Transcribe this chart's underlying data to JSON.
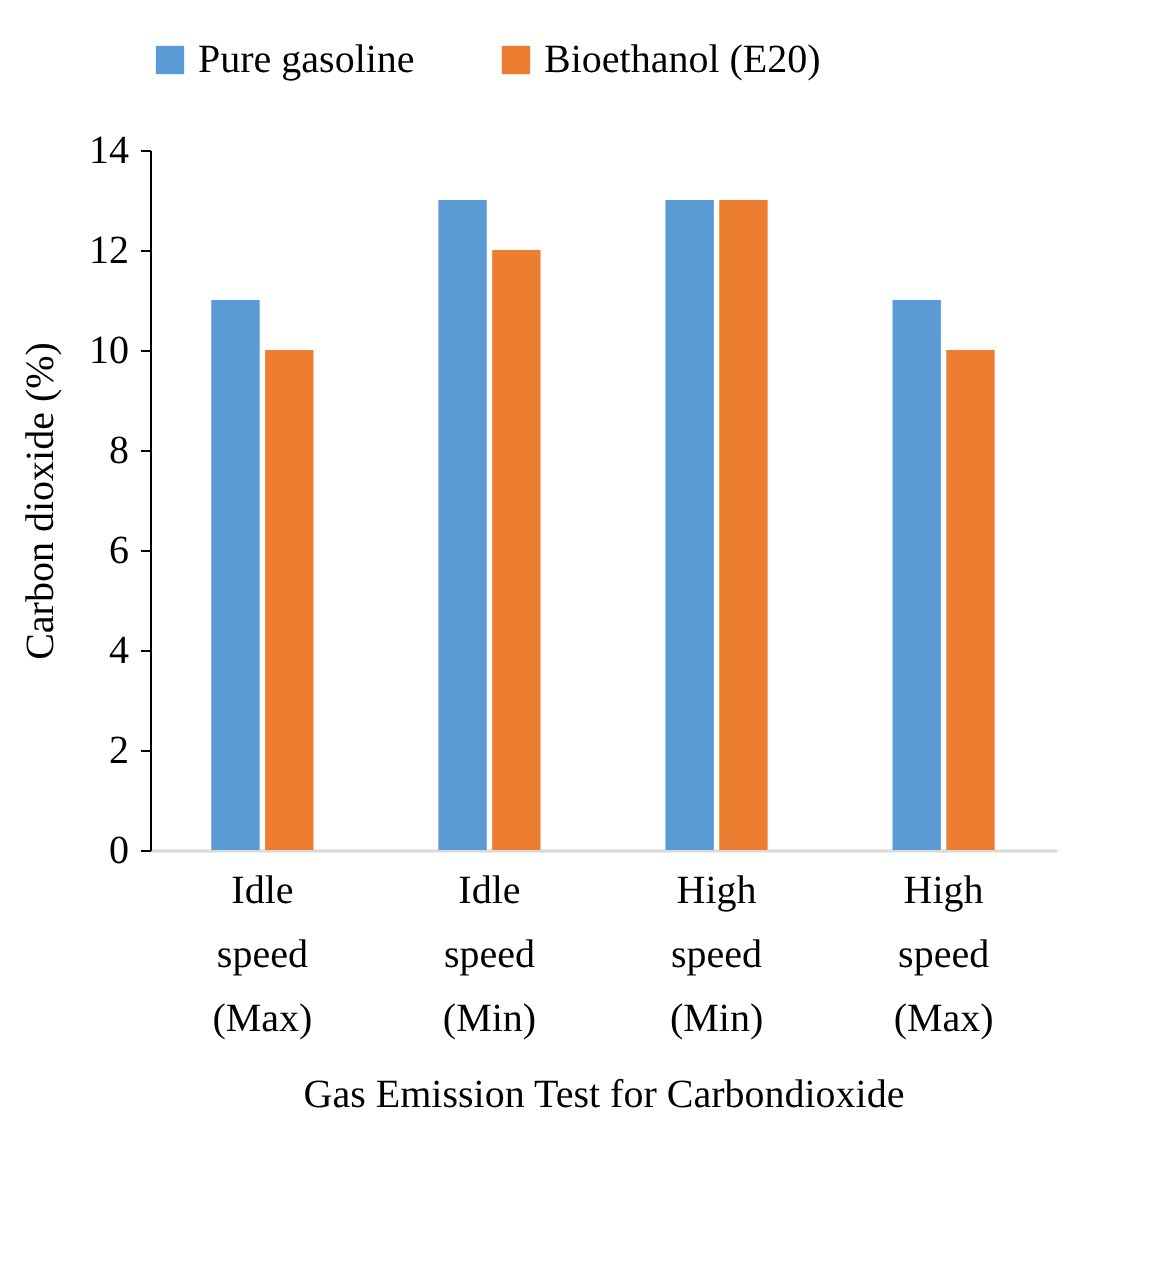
{
  "chart_data": {
    "type": "bar",
    "xlabel": "Gas Emission Test for Carbondioxide",
    "ylabel": "Carbon dioxide (%)",
    "categories": [
      "Idle speed (Max)",
      "Idle speed (Min)",
      "High speed (Min)",
      "High speed (Max)"
    ],
    "series": [
      {
        "name": "Pure gasoline",
        "color": "#5b9bd5",
        "values": [
          11,
          13,
          13,
          11
        ]
      },
      {
        "name": "Bioethanol (E20)",
        "color": "#ed7d31",
        "values": [
          10,
          12,
          13,
          10
        ]
      }
    ],
    "ylim": [
      0,
      14
    ],
    "yticks": [
      0,
      2,
      4,
      6,
      8,
      10,
      12,
      14
    ],
    "grid": false,
    "legend": "top"
  }
}
